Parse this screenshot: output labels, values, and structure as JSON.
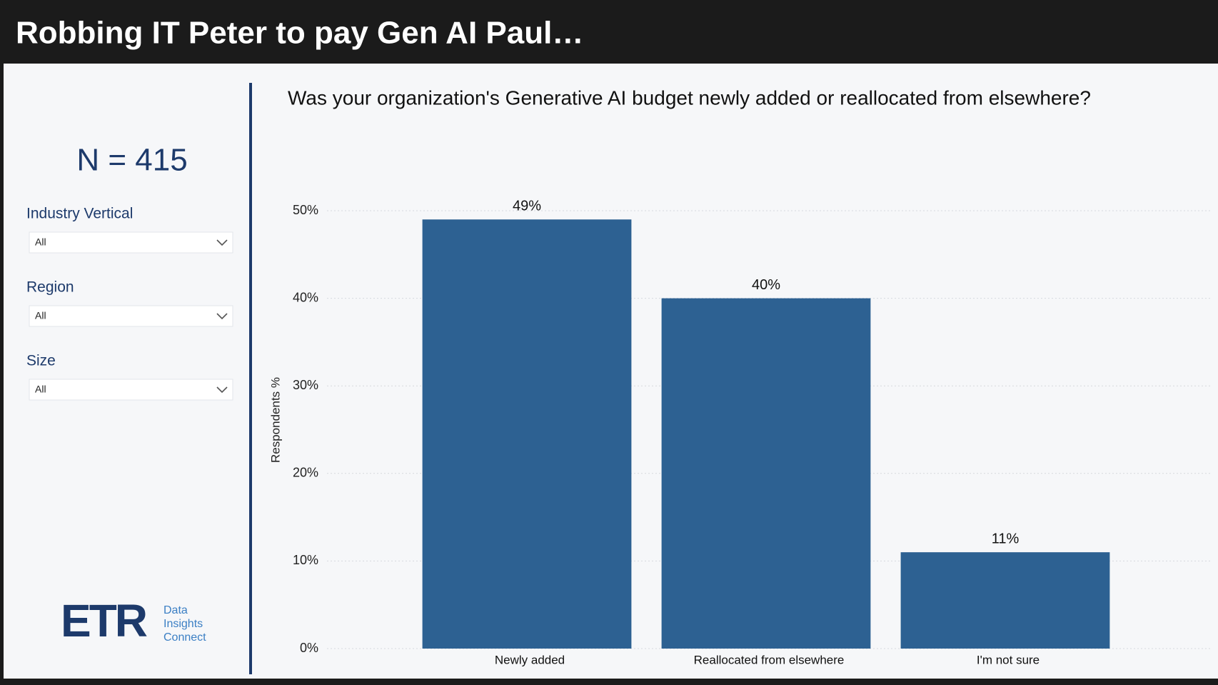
{
  "header": {
    "title": "Robbing IT Peter to pay Gen AI Paul…"
  },
  "sidebar": {
    "n_label": "N = 415",
    "filters": [
      {
        "label": "Industry Vertical",
        "value": "All"
      },
      {
        "label": "Region",
        "value": "All"
      },
      {
        "label": "Size",
        "value": "All"
      }
    ],
    "logo": {
      "mark": "ETR",
      "lines": [
        "Data",
        "Insights",
        "Connect"
      ]
    }
  },
  "chart_data": {
    "type": "bar",
    "title": "Was your organization's Generative AI budget newly added or reallocated from elsewhere?",
    "ylabel": "Respondents %",
    "categories": [
      "Newly added",
      "Reallocated from elsewhere",
      "I'm not sure"
    ],
    "values": [
      49,
      40,
      11
    ],
    "value_labels": [
      "49%",
      "40%",
      "11%"
    ],
    "color": "#2d6192",
    "ylim": [
      0,
      50
    ],
    "yticks": [
      {
        "value": 0,
        "label": "0%"
      },
      {
        "value": 10,
        "label": "10%"
      },
      {
        "value": 20,
        "label": "20%"
      },
      {
        "value": 30,
        "label": "30%"
      },
      {
        "value": 40,
        "label": "40%"
      },
      {
        "value": 50,
        "label": "50%"
      }
    ],
    "grid": true
  }
}
